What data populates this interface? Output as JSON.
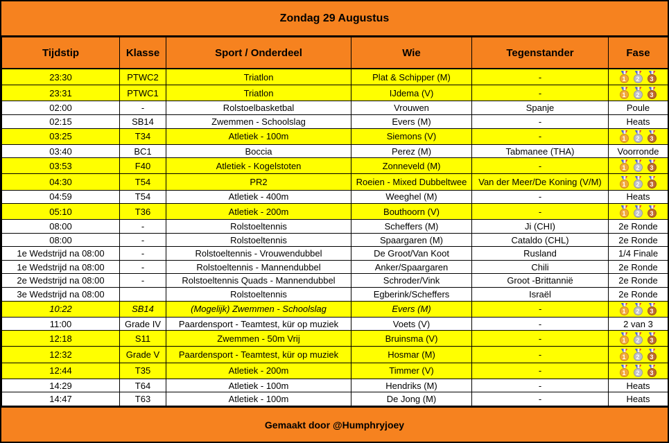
{
  "title": "Zondag 29 Augustus",
  "footer": "Gemaakt door @Humphryjoey",
  "columns": [
    "Tijdstip",
    "Klasse",
    "Sport / Onderdeel",
    "Wie",
    "Tegenstander",
    "Fase"
  ],
  "colors": {
    "band_orange": "#F6821F",
    "highlight_yellow": "#FFFF00",
    "row_white": "#FFFFFF",
    "border_black": "#000000",
    "medal_gold": "#F2A93B",
    "medal_silver": "#BFBFC7",
    "medal_bronze": "#BF6A2E"
  },
  "medal_icons": [
    {
      "name": "gold-medal-icon",
      "style": "gold",
      "label": "1"
    },
    {
      "name": "silver-medal-icon",
      "style": "silver",
      "label": "2"
    },
    {
      "name": "bronze-medal-icon",
      "style": "bronze",
      "label": "3"
    }
  ],
  "rows": [
    {
      "tijdstip": "23:30",
      "klasse": "PTWC2",
      "sport": "Triatlon",
      "wie": "Plat & Schipper (M)",
      "tegenstander": "-",
      "fase": "",
      "medal_chance": true,
      "highlight": true,
      "italic": false
    },
    {
      "tijdstip": "23:31",
      "klasse": "PTWC1",
      "sport": "Triatlon",
      "wie": "IJdema (V)",
      "tegenstander": "-",
      "fase": "",
      "medal_chance": true,
      "highlight": true,
      "italic": false
    },
    {
      "tijdstip": "02:00",
      "klasse": "-",
      "sport": "Rolstoelbasketbal",
      "wie": "Vrouwen",
      "tegenstander": "Spanje",
      "fase": "Poule",
      "medal_chance": false,
      "highlight": false,
      "italic": false
    },
    {
      "tijdstip": "02:15",
      "klasse": "SB14",
      "sport": "Zwemmen - Schoolslag",
      "wie": "Evers (M)",
      "tegenstander": "-",
      "fase": "Heats",
      "medal_chance": false,
      "highlight": false,
      "italic": false
    },
    {
      "tijdstip": "03:25",
      "klasse": "T34",
      "sport": "Atletiek - 100m",
      "wie": "Siemons (V)",
      "tegenstander": "-",
      "fase": "",
      "medal_chance": true,
      "highlight": true,
      "italic": false
    },
    {
      "tijdstip": "03:40",
      "klasse": "BC1",
      "sport": "Boccia",
      "wie": "Perez (M)",
      "tegenstander": "Tabmanee (THA)",
      "fase": "Voorronde",
      "medal_chance": false,
      "highlight": false,
      "italic": false
    },
    {
      "tijdstip": "03:53",
      "klasse": "F40",
      "sport": "Atletiek - Kogelstoten",
      "wie": "Zonneveld (M)",
      "tegenstander": "-",
      "fase": "",
      "medal_chance": true,
      "highlight": true,
      "italic": false
    },
    {
      "tijdstip": "04:30",
      "klasse": "T54",
      "sport": "PR2",
      "wie": "Roeien - Mixed Dubbeltwee",
      "tegenstander": "Van der Meer/De Koning (V/M)",
      "fase": "",
      "medal_chance": true,
      "highlight": true,
      "italic": false
    },
    {
      "tijdstip": "04:59",
      "klasse": "T54",
      "sport": "Atletiek - 400m",
      "wie": "Weeghel (M)",
      "tegenstander": "-",
      "fase": "Heats",
      "medal_chance": false,
      "highlight": false,
      "italic": false
    },
    {
      "tijdstip": "05:10",
      "klasse": "T36",
      "sport": "Atletiek - 200m",
      "wie": "Bouthoorn (V)",
      "tegenstander": "-",
      "fase": "",
      "medal_chance": true,
      "highlight": true,
      "italic": false
    },
    {
      "tijdstip": "08:00",
      "klasse": "-",
      "sport": "Rolstoeltennis",
      "wie": "Scheffers (M)",
      "tegenstander": "Ji (CHI)",
      "fase": "2e Ronde",
      "medal_chance": false,
      "highlight": false,
      "italic": false
    },
    {
      "tijdstip": "08:00",
      "klasse": "-",
      "sport": "Rolstoeltennis",
      "wie": "Spaargaren (M)",
      "tegenstander": "Cataldo (CHL)",
      "fase": "2e Ronde",
      "medal_chance": false,
      "highlight": false,
      "italic": false
    },
    {
      "tijdstip": "1e Wedstrijd na 08:00",
      "klasse": "-",
      "sport": "Rolstoeltennis - Vrouwendubbel",
      "wie": "De Groot/Van Koot",
      "tegenstander": "Rusland",
      "fase": "1/4 Finale",
      "medal_chance": false,
      "highlight": false,
      "italic": false
    },
    {
      "tijdstip": "1e Wedstrijd na 08:00",
      "klasse": "-",
      "sport": "Rolstoeltennis - Mannendubbel",
      "wie": "Anker/Spaargaren",
      "tegenstander": "Chili",
      "fase": "2e Ronde",
      "medal_chance": false,
      "highlight": false,
      "italic": false
    },
    {
      "tijdstip": "2e Wedstrijd na 08:00",
      "klasse": "-",
      "sport": "Rolstoeltennis Quads - Mannendubbel",
      "wie": "Schroder/Vink",
      "tegenstander": "Groot -Brittannië",
      "fase": "2e Ronde",
      "medal_chance": false,
      "highlight": false,
      "italic": false
    },
    {
      "tijdstip": "3e Wedstrijd na 08:00",
      "klasse": "",
      "sport": "Rolstoeltennis",
      "wie": "Egberink/Scheffers",
      "tegenstander": "Israël",
      "fase": "2e Ronde",
      "medal_chance": false,
      "highlight": false,
      "italic": false
    },
    {
      "tijdstip": "10:22",
      "klasse": "SB14",
      "sport": "(Mogelijk) Zwemmen - Schoolslag",
      "wie": "Evers (M)",
      "tegenstander": "-",
      "fase": "",
      "medal_chance": true,
      "highlight": true,
      "italic": true
    },
    {
      "tijdstip": "11:00",
      "klasse": "Grade IV",
      "sport": "Paardensport - Teamtest, kür op muziek",
      "wie": "Voets (V)",
      "tegenstander": "-",
      "fase": "2 van 3",
      "medal_chance": false,
      "highlight": false,
      "italic": false
    },
    {
      "tijdstip": "12:18",
      "klasse": "S11",
      "sport": "Zwemmen - 50m Vrij",
      "wie": "Bruinsma (V)",
      "tegenstander": "-",
      "fase": "",
      "medal_chance": true,
      "highlight": true,
      "italic": false
    },
    {
      "tijdstip": "12:32",
      "klasse": "Grade V",
      "sport": "Paardensport - Teamtest, kür op muziek",
      "wie": "Hosmar (M)",
      "tegenstander": "-",
      "fase": "",
      "medal_chance": true,
      "highlight": true,
      "italic": false
    },
    {
      "tijdstip": "12:44",
      "klasse": "T35",
      "sport": "Atletiek - 200m",
      "wie": "Timmer (V)",
      "tegenstander": "-",
      "fase": "",
      "medal_chance": true,
      "highlight": true,
      "italic": false
    },
    {
      "tijdstip": "14:29",
      "klasse": "T64",
      "sport": "Atletiek - 100m",
      "wie": "Hendriks (M)",
      "tegenstander": "-",
      "fase": "Heats",
      "medal_chance": false,
      "highlight": false,
      "italic": false
    },
    {
      "tijdstip": "14:47",
      "klasse": "T63",
      "sport": "Atletiek - 100m",
      "wie": "De Jong (M)",
      "tegenstander": "-",
      "fase": "Heats",
      "medal_chance": false,
      "highlight": false,
      "italic": false
    }
  ]
}
